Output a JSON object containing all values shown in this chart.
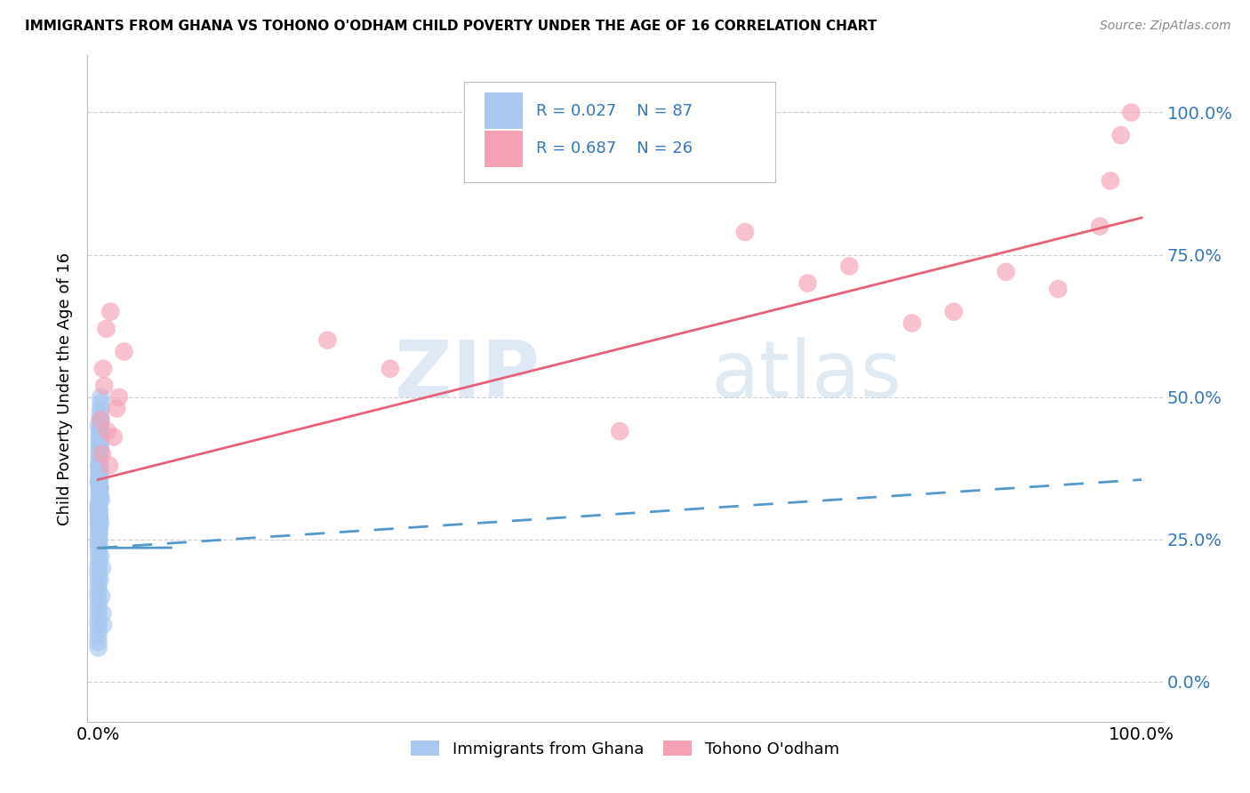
{
  "title": "IMMIGRANTS FROM GHANA VS TOHONO O'ODHAM CHILD POVERTY UNDER THE AGE OF 16 CORRELATION CHART",
  "source": "Source: ZipAtlas.com",
  "ylabel": "Child Poverty Under the Age of 16",
  "legend_label1": "Immigrants from Ghana",
  "legend_label2": "Tohono O'odham",
  "R1": 0.027,
  "N1": 87,
  "R2": 0.687,
  "N2": 26,
  "blue_color": "#a8c8f0",
  "pink_color": "#f4a0b5",
  "blue_line_color": "#5599cc",
  "pink_line_color": "#e8607a",
  "watermark_zip": "ZIP",
  "watermark_atlas": "atlas",
  "ghana_x": [
    0.0008,
    0.0012,
    0.0005,
    0.0015,
    0.002,
    0.0008,
    0.001,
    0.0006,
    0.0018,
    0.0004,
    0.0009,
    0.0007,
    0.0014,
    0.0011,
    0.0016,
    0.0003,
    0.0022,
    0.0013,
    0.0019,
    0.0005,
    0.001,
    0.0008,
    0.0017,
    0.0006,
    0.0012,
    0.0025,
    0.0009,
    0.0015,
    0.0004,
    0.0011,
    0.002,
    0.0007,
    0.0013,
    0.0024,
    0.0016,
    0.001,
    0.0003,
    0.0018,
    0.0008,
    0.0005,
    0.0027,
    0.0012,
    0.0019,
    0.0006,
    0.0014,
    0.0021,
    0.0004,
    0.0009,
    0.0016,
    0.003,
    0.0002,
    0.0011,
    0.0023,
    0.0007,
    0.0028,
    0.001,
    0.0003,
    0.0017,
    0.0013,
    0.0005,
    0.0015,
    0.0002,
    0.002,
    0.0009,
    0.0004,
    0.0026,
    0.0012,
    0.0018,
    0.0006,
    0.0011,
    0.0022,
    0.0003,
    0.001,
    0.0024,
    0.0016,
    0.0008,
    0.0002,
    0.0014,
    0.0009,
    0.0004,
    0.0032,
    0.0028,
    0.0019,
    0.004,
    0.0035,
    0.0045,
    0.005
  ],
  "ghana_y": [
    0.38,
    0.42,
    0.35,
    0.41,
    0.32,
    0.28,
    0.3,
    0.45,
    0.33,
    0.25,
    0.36,
    0.29,
    0.4,
    0.27,
    0.38,
    0.31,
    0.46,
    0.37,
    0.34,
    0.24,
    0.39,
    0.23,
    0.41,
    0.3,
    0.43,
    0.28,
    0.35,
    0.44,
    0.2,
    0.32,
    0.47,
    0.21,
    0.33,
    0.46,
    0.37,
    0.29,
    0.19,
    0.36,
    0.31,
    0.18,
    0.48,
    0.27,
    0.34,
    0.17,
    0.3,
    0.43,
    0.16,
    0.28,
    0.4,
    0.49,
    0.15,
    0.26,
    0.41,
    0.14,
    0.5,
    0.25,
    0.13,
    0.37,
    0.29,
    0.12,
    0.38,
    0.11,
    0.36,
    0.28,
    0.1,
    0.44,
    0.24,
    0.33,
    0.09,
    0.29,
    0.42,
    0.08,
    0.3,
    0.45,
    0.35,
    0.22,
    0.07,
    0.34,
    0.26,
    0.06,
    0.32,
    0.22,
    0.18,
    0.2,
    0.15,
    0.12,
    0.1
  ],
  "tohono_x": [
    0.005,
    0.008,
    0.003,
    0.012,
    0.006,
    0.009,
    0.004,
    0.011,
    0.02,
    0.025,
    0.015,
    0.018,
    0.22,
    0.28,
    0.5,
    0.62,
    0.68,
    0.72,
    0.78,
    0.82,
    0.87,
    0.92,
    0.96,
    0.97,
    0.98,
    0.99
  ],
  "tohono_y": [
    0.55,
    0.62,
    0.46,
    0.65,
    0.52,
    0.44,
    0.4,
    0.38,
    0.5,
    0.58,
    0.43,
    0.48,
    0.6,
    0.55,
    0.44,
    0.79,
    0.7,
    0.73,
    0.63,
    0.65,
    0.72,
    0.69,
    0.8,
    0.88,
    0.96,
    1.0
  ],
  "blue_line_start_y": 0.235,
  "blue_line_end_y": 0.355,
  "pink_line_start_y": 0.355,
  "pink_line_end_y": 0.815,
  "xlim": [
    -0.01,
    1.02
  ],
  "ylim": [
    -0.07,
    1.1
  ],
  "yticks": [
    0.0,
    0.25,
    0.5,
    0.75,
    1.0
  ],
  "ytick_labels": [
    "",
    "",
    "",
    "",
    ""
  ],
  "ytick_labels_right": [
    "0.0%",
    "25.0%",
    "50.0%",
    "75.0%",
    "100.0%"
  ],
  "xticks": [
    0.0,
    1.0
  ],
  "xtick_labels": [
    "0.0%",
    "100.0%"
  ]
}
